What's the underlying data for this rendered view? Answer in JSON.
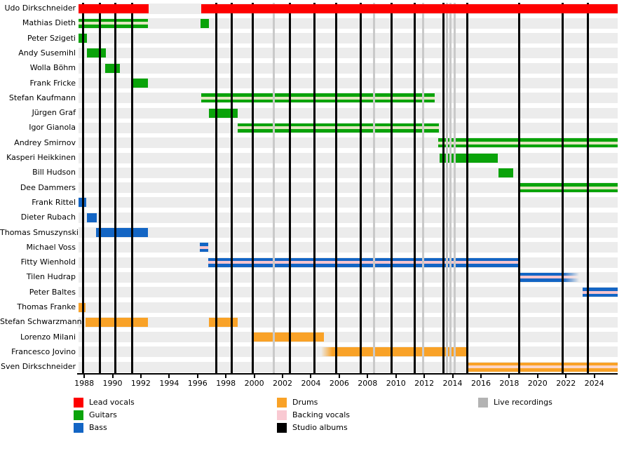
{
  "colors": {
    "lead_vocals": "#fe0000",
    "guitars": "#0aa30a",
    "bass": "#1365c4",
    "drums": "#f9a227",
    "backing_vocals": "#f9c9d2",
    "studio_albums": "#000000",
    "live_recordings": "#b3b3b3",
    "live_line": "#c9c9c9",
    "row_band": "#ececec",
    "stripes": {
      "tan": "#e2e7c0",
      "pink": "#f6c5ce",
      "peach": "#fbd5c8"
    }
  },
  "chart_data": {
    "type": "timeline",
    "title": "",
    "axis": {
      "min": 1987.6,
      "max": 2025.65,
      "tick_years": [
        1988,
        1990,
        1992,
        1994,
        1996,
        1998,
        2000,
        2002,
        2004,
        2006,
        2008,
        2010,
        2012,
        2014,
        2016,
        2018,
        2020,
        2022,
        2024
      ]
    },
    "members": [
      {
        "name": "Udo Dirkschneider",
        "role": "lead_vocals",
        "bars": [
          {
            "start": 1987.6,
            "end": 1992.55
          },
          {
            "start": 1996.25,
            "end": 2025.65
          }
        ]
      },
      {
        "name": "Mathias Dieth",
        "role": "guitars",
        "bars": [
          {
            "start": 1987.6,
            "end": 1992.5,
            "stripe": "tan"
          },
          {
            "start": 1996.2,
            "end": 1996.8
          }
        ]
      },
      {
        "name": "Peter Szigeti",
        "role": "guitars",
        "bars": [
          {
            "start": 1987.6,
            "end": 1988.2
          }
        ]
      },
      {
        "name": "Andy Susemihl",
        "role": "guitars",
        "bars": [
          {
            "start": 1988.2,
            "end": 1989.55
          }
        ]
      },
      {
        "name": "Wolla Böhm",
        "role": "guitars",
        "bars": [
          {
            "start": 1989.5,
            "end": 1990.5
          }
        ]
      },
      {
        "name": "Frank Fricke",
        "role": "guitars",
        "bars": [
          {
            "start": 1991.4,
            "end": 1992.5
          }
        ]
      },
      {
        "name": "Stefan Kaufmann",
        "role": "guitars",
        "bars": [
          {
            "start": 1996.25,
            "end": 2012.75,
            "stripe": "tan"
          }
        ]
      },
      {
        "name": "Jürgen Graf",
        "role": "guitars",
        "bars": [
          {
            "start": 1996.8,
            "end": 1998.85
          }
        ]
      },
      {
        "name": "Igor Gianola",
        "role": "guitars",
        "bars": [
          {
            "start": 1998.85,
            "end": 2013.05,
            "stripe": "tan"
          }
        ]
      },
      {
        "name": "Andrey Smirnov",
        "role": "guitars",
        "bars": [
          {
            "start": 2013.0,
            "end": 2025.65,
            "stripe": "tan"
          }
        ]
      },
      {
        "name": "Kasperi Heikkinen",
        "role": "guitars",
        "bars": [
          {
            "start": 2013.1,
            "end": 2017.2
          }
        ]
      },
      {
        "name": "Bill Hudson",
        "role": "guitars",
        "bars": [
          {
            "start": 2017.25,
            "end": 2018.3
          }
        ]
      },
      {
        "name": "Dee Dammers",
        "role": "guitars",
        "bars": [
          {
            "start": 2018.75,
            "end": 2025.65,
            "stripe": "tan"
          }
        ]
      },
      {
        "name": "Frank Rittel",
        "role": "bass",
        "bars": [
          {
            "start": 1987.6,
            "end": 1988.15
          }
        ]
      },
      {
        "name": "Dieter Rubach",
        "role": "bass",
        "bars": [
          {
            "start": 1988.2,
            "end": 1988.9
          }
        ]
      },
      {
        "name": "Thomas Smuszynski",
        "role": "bass",
        "bars": [
          {
            "start": 1988.85,
            "end": 1992.5
          }
        ]
      },
      {
        "name": "Michael Voss",
        "role": "bass",
        "bars": [
          {
            "start": 1996.15,
            "end": 1996.75,
            "stripe": "pink"
          }
        ]
      },
      {
        "name": "Fitty Wienhold",
        "role": "bass",
        "bars": [
          {
            "start": 1996.75,
            "end": 2018.7,
            "stripe": "pink"
          }
        ]
      },
      {
        "name": "Tilen Hudrap",
        "role": "bass",
        "bars": [
          {
            "start": 2018.75,
            "end": 2022.95,
            "stripe": "pink",
            "fade": "right"
          }
        ]
      },
      {
        "name": "Peter Baltes",
        "role": "bass",
        "bars": [
          {
            "start": 2023.2,
            "end": 2025.65,
            "stripe": "pink"
          }
        ]
      },
      {
        "name": "Thomas Franke",
        "role": "drums",
        "bars": [
          {
            "start": 1987.6,
            "end": 1988.1
          }
        ]
      },
      {
        "name": "Stefan Schwarzmann",
        "role": "drums",
        "bars": [
          {
            "start": 1988.1,
            "end": 1992.5
          },
          {
            "start": 1996.8,
            "end": 1998.85
          }
        ]
      },
      {
        "name": "Lorenzo Milani",
        "role": "drums",
        "bars": [
          {
            "start": 1999.9,
            "end": 2004.9
          }
        ]
      },
      {
        "name": "Francesco Jovino",
        "role": "drums",
        "bars": [
          {
            "start": 2004.7,
            "end": 2015.05,
            "fade": "left"
          }
        ]
      },
      {
        "name": "Sven Dirkschneider",
        "role": "drums",
        "bars": [
          {
            "start": 2015.05,
            "end": 2025.65,
            "stripe": "peach"
          }
        ]
      }
    ],
    "events": {
      "studio_albums": [
        1987.9,
        1989.1,
        1990.2,
        1991.4,
        1997.3,
        1998.4,
        1999.9,
        2002.5,
        2004.25,
        2005.8,
        2007.5,
        2009.7,
        2011.35,
        2013.35,
        2015.05,
        2018.7,
        2021.75,
        2023.55
      ],
      "live_recordings": [
        2001.4,
        2008.45,
        2011.9,
        2013.6,
        2013.85,
        2014.15
      ]
    },
    "legend": {
      "columns": [
        {
          "items": [
            {
              "label": "Lead vocals",
              "color_key": "lead_vocals"
            },
            {
              "label": "Guitars",
              "color_key": "guitars"
            },
            {
              "label": "Bass",
              "color_key": "bass"
            }
          ]
        },
        {
          "items": [
            {
              "label": "Drums",
              "color_key": "drums"
            },
            {
              "label": "Backing vocals",
              "color_key": "backing_vocals"
            },
            {
              "label": "Studio albums",
              "color_key": "studio_albums"
            }
          ]
        },
        {
          "items": [
            {
              "label": "Live recordings",
              "color_key": "live_recordings"
            }
          ]
        }
      ]
    }
  }
}
